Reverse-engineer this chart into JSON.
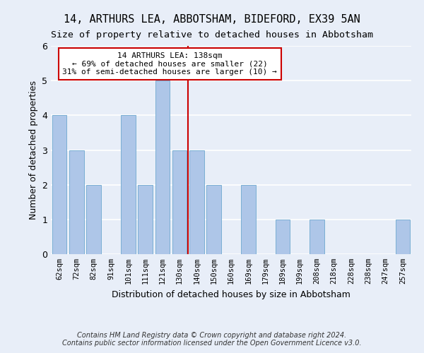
{
  "title": "14, ARTHURS LEA, ABBOTSHAM, BIDEFORD, EX39 5AN",
  "subtitle": "Size of property relative to detached houses in Abbotsham",
  "xlabel": "Distribution of detached houses by size in Abbotsham",
  "ylabel": "Number of detached properties",
  "footnote1": "Contains HM Land Registry data © Crown copyright and database right 2024.",
  "footnote2": "Contains public sector information licensed under the Open Government Licence v3.0.",
  "bins": [
    "62sqm",
    "72sqm",
    "82sqm",
    "91sqm",
    "101sqm",
    "111sqm",
    "121sqm",
    "130sqm",
    "140sqm",
    "150sqm",
    "160sqm",
    "169sqm",
    "179sqm",
    "189sqm",
    "199sqm",
    "208sqm",
    "218sqm",
    "228sqm",
    "238sqm",
    "247sqm",
    "257sqm"
  ],
  "values": [
    4,
    3,
    2,
    0,
    4,
    2,
    5,
    3,
    3,
    2,
    0,
    2,
    0,
    1,
    0,
    1,
    0,
    0,
    0,
    0,
    1
  ],
  "bar_color": "#aec6e8",
  "bar_edge_color": "#7aafd4",
  "bg_color": "#e8eef8",
  "grid_color": "#ffffff",
  "vline_x": 7.5,
  "vline_color": "#cc0000",
  "annotation_line1": "14 ARTHURS LEA: 138sqm",
  "annotation_line2": "← 69% of detached houses are smaller (22)",
  "annotation_line3": "31% of semi-detached houses are larger (10) →",
  "annotation_box_color": "#ffffff",
  "annotation_box_edge": "#cc0000",
  "ylim": [
    0,
    6
  ],
  "yticks": [
    0,
    1,
    2,
    3,
    4,
    5,
    6
  ],
  "title_fontsize": 11,
  "subtitle_fontsize": 9.5
}
